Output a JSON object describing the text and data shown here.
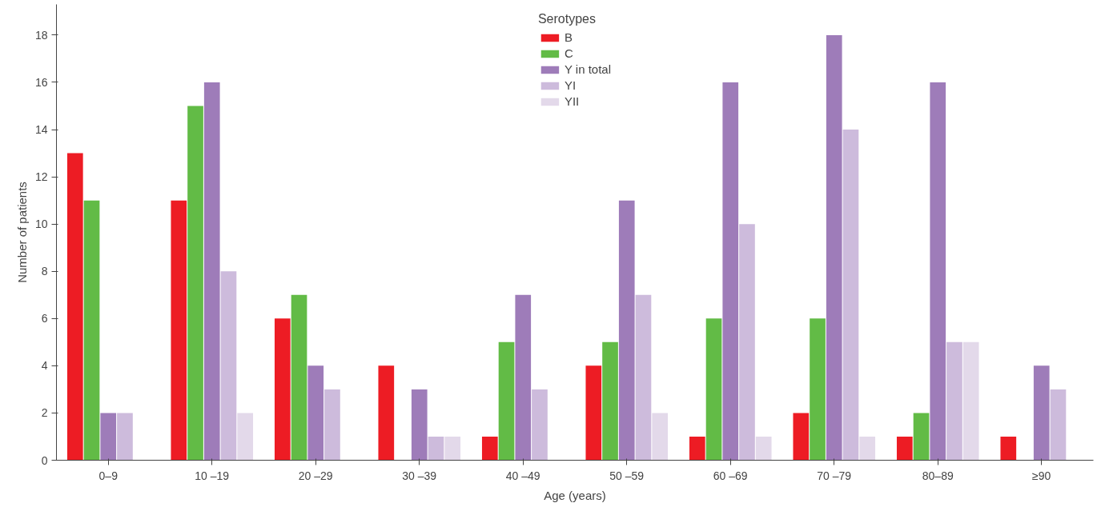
{
  "chart_data": {
    "type": "bar",
    "xlabel": "Age (years)",
    "ylabel": "Number of patients",
    "legend_title": "Serotypes",
    "categories": [
      "0–9",
      "10 –19",
      "20 –29",
      "30 –39",
      "40 –49",
      "50 –59",
      "60 –69",
      "70 –79",
      "80–89",
      "≥90"
    ],
    "series": [
      {
        "name": "B",
        "color": "#ed1c24",
        "values": [
          13,
          11,
          6,
          4,
          1,
          4,
          1,
          2,
          1,
          1
        ]
      },
      {
        "name": "C",
        "color": "#62bb46",
        "values": [
          11,
          15,
          7,
          null,
          5,
          5,
          6,
          6,
          2,
          null
        ]
      },
      {
        "name": "Y in total",
        "color": "#9e7cb9",
        "values": [
          2,
          16,
          4,
          3,
          7,
          11,
          16,
          18,
          16,
          4
        ]
      },
      {
        "name": "YI",
        "color": "#cdbbdc",
        "values": [
          2,
          8,
          3,
          1,
          3,
          7,
          10,
          14,
          5,
          3
        ]
      },
      {
        "name": "YII",
        "color": "#e3d9ea",
        "values": [
          null,
          2,
          null,
          1,
          null,
          2,
          1,
          1,
          5,
          null
        ]
      }
    ],
    "ylim": [
      0,
      19.3
    ],
    "yticks": [
      0,
      2,
      4,
      6,
      8,
      10,
      12,
      14,
      16,
      18
    ],
    "grid": false,
    "legend": "top"
  }
}
